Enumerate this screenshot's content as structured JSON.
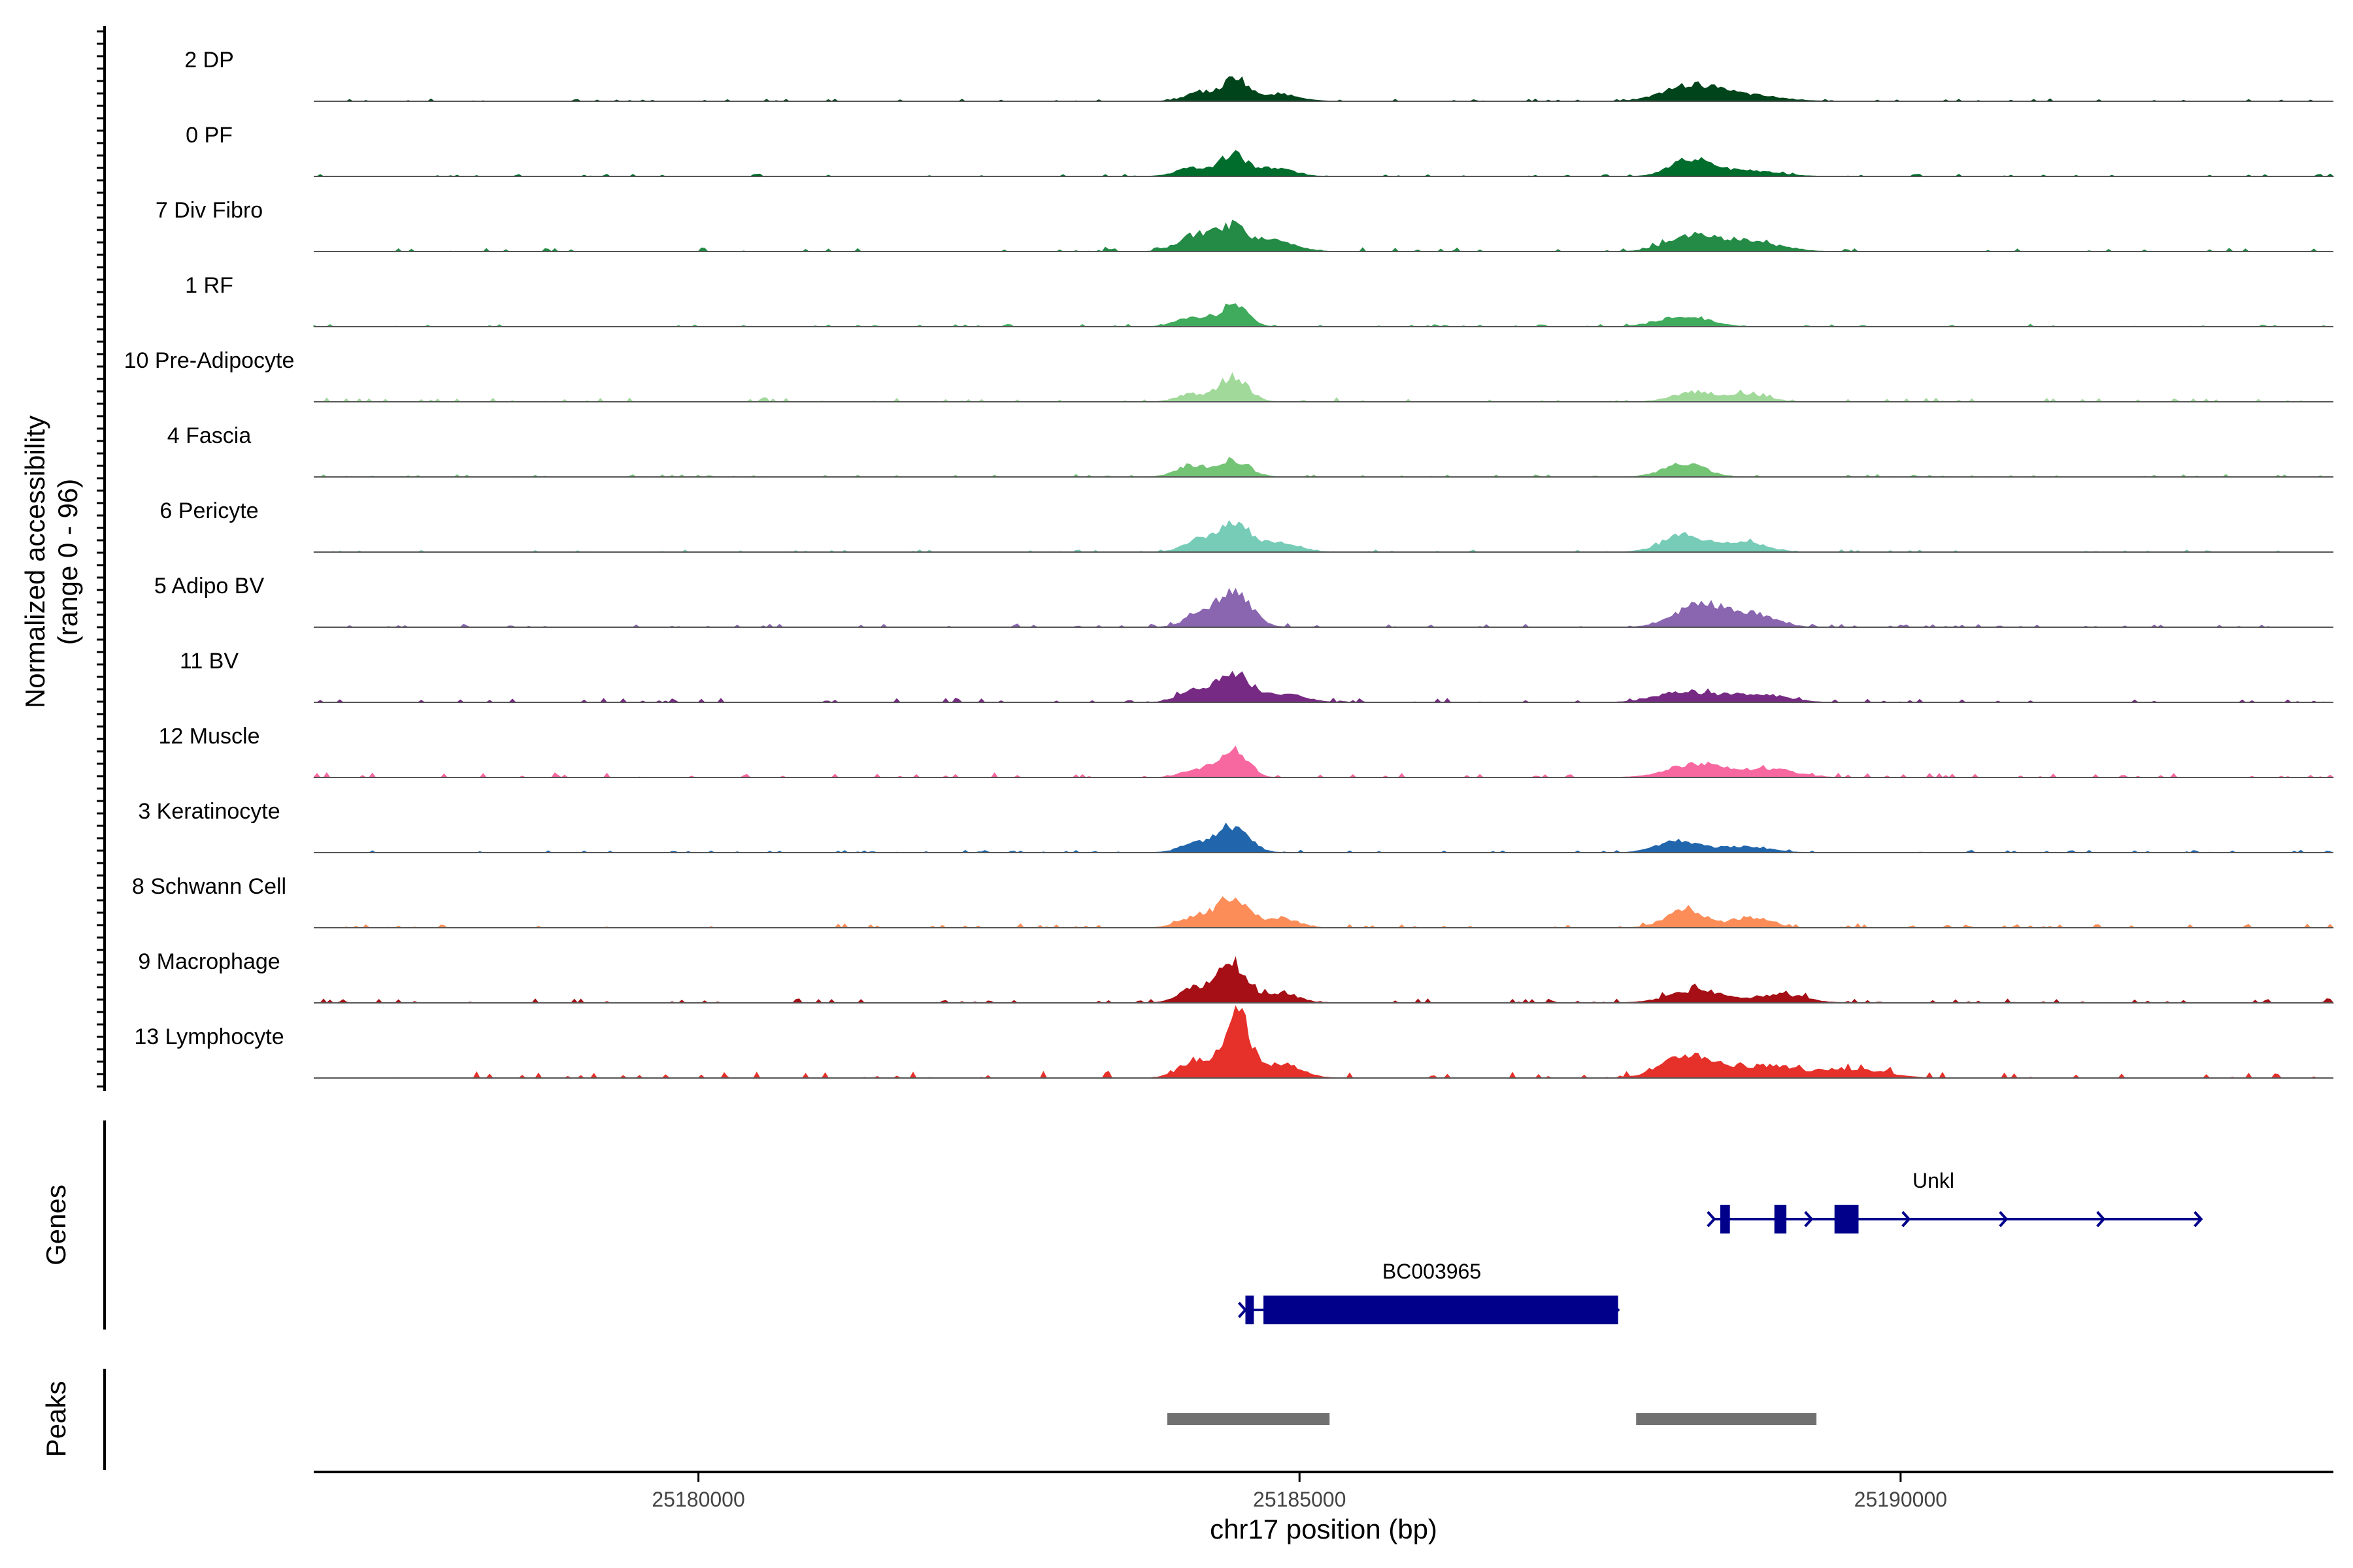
{
  "chart_data": {
    "type": "area",
    "title": "",
    "ylabel_line1": "Normalized accessibility",
    "ylabel_line2": "(range 0 - 96)",
    "ylim": [
      0,
      96
    ],
    "xlabel": "chr17 position (bp)",
    "xlim": [
      25176800,
      25193600
    ],
    "xticks": [
      25180000,
      25185000,
      25190000
    ],
    "xtick_labels": [
      "25180000",
      "25185000",
      "25190000"
    ],
    "series": [
      {
        "name": "2 DP",
        "color": "#00441B",
        "peaks": [
          [
            25184470,
            30,
            90
          ],
          [
            25184200,
            12,
            140
          ],
          [
            25184800,
            10,
            170
          ],
          [
            25188250,
            20,
            220
          ],
          [
            25188700,
            8,
            280
          ]
        ],
        "noise": 3
      },
      {
        "name": "0 PF",
        "color": "#006D2C",
        "peaks": [
          [
            25184450,
            28,
            110
          ],
          [
            25184120,
            11,
            140
          ],
          [
            25184800,
            11,
            150
          ],
          [
            25188250,
            22,
            160
          ],
          [
            25188700,
            8,
            250
          ]
        ],
        "noise": 3
      },
      {
        "name": "7 Div Fibro",
        "color": "#238B45",
        "peaks": [
          [
            25184450,
            30,
            120
          ],
          [
            25184150,
            22,
            150
          ],
          [
            25184800,
            14,
            170
          ],
          [
            25188250,
            18,
            200
          ],
          [
            25188700,
            14,
            260
          ]
        ],
        "noise": 5
      },
      {
        "name": "1 RF",
        "color": "#41AB5D",
        "peaks": [
          [
            25184450,
            30,
            110
          ],
          [
            25184100,
            12,
            130
          ],
          [
            25188200,
            14,
            200
          ]
        ],
        "noise": 3
      },
      {
        "name": "10 Pre-Adipocyte",
        "color": "#A1D99B",
        "peaks": [
          [
            25184450,
            32,
            120
          ],
          [
            25184100,
            10,
            120
          ],
          [
            25188300,
            13,
            180
          ],
          [
            25188750,
            9,
            160
          ]
        ],
        "noise": 5
      },
      {
        "name": "4 Fascia",
        "color": "#74C476",
        "peaks": [
          [
            25184450,
            22,
            130
          ],
          [
            25184100,
            14,
            130
          ],
          [
            25188200,
            17,
            170
          ]
        ],
        "noise": 3
      },
      {
        "name": "6 Pericyte",
        "color": "#76CCB6",
        "peaks": [
          [
            25184450,
            36,
            140
          ],
          [
            25184150,
            14,
            120
          ],
          [
            25184850,
            13,
            150
          ],
          [
            25188200,
            22,
            180
          ],
          [
            25188700,
            13,
            180
          ]
        ],
        "noise": 3
      },
      {
        "name": "5 Adipo BV",
        "color": "#8A65B0",
        "peaks": [
          [
            25184450,
            48,
            140
          ],
          [
            25184150,
            14,
            120
          ],
          [
            25188350,
            30,
            210
          ],
          [
            25188800,
            16,
            170
          ]
        ],
        "noise": 4
      },
      {
        "name": "11 BV",
        "color": "#762A83",
        "peaks": [
          [
            25184450,
            38,
            150
          ],
          [
            25184100,
            13,
            120
          ],
          [
            25184900,
            11,
            150
          ],
          [
            25188200,
            14,
            220
          ],
          [
            25188800,
            11,
            230
          ]
        ],
        "noise": 5
      },
      {
        "name": "12 Muscle",
        "color": "#F768A1",
        "peaks": [
          [
            25184450,
            40,
            110
          ],
          [
            25184150,
            10,
            130
          ],
          [
            25188300,
            18,
            230
          ],
          [
            25188900,
            11,
            220
          ]
        ],
        "noise": 6
      },
      {
        "name": "3 Keratinocyte",
        "color": "#2166AC",
        "peaks": [
          [
            25184450,
            34,
            130
          ],
          [
            25184150,
            11,
            140
          ],
          [
            25188150,
            16,
            170
          ],
          [
            25188700,
            8,
            200
          ]
        ],
        "noise": 3
      },
      {
        "name": "8 Schwann Cell",
        "color": "#FC8D59",
        "peaks": [
          [
            25184450,
            38,
            130
          ],
          [
            25184150,
            14,
            140
          ],
          [
            25184850,
            12,
            140
          ],
          [
            25188200,
            22,
            160
          ],
          [
            25188750,
            14,
            160
          ]
        ],
        "noise": 5
      },
      {
        "name": "9 Macrophage",
        "color": "#A50F15",
        "peaks": [
          [
            25184450,
            50,
            120
          ],
          [
            25184150,
            20,
            140
          ],
          [
            25184850,
            12,
            140
          ],
          [
            25188300,
            16,
            220
          ],
          [
            25189000,
            11,
            200
          ]
        ],
        "noise": 6
      },
      {
        "name": "13 Lymphocyte",
        "color": "#E6302A",
        "peaks": [
          [
            25184480,
            85,
            100
          ],
          [
            25184150,
            24,
            140
          ],
          [
            25184850,
            18,
            160
          ],
          [
            25188250,
            30,
            220
          ],
          [
            25188900,
            16,
            250
          ],
          [
            25189600,
            12,
            250
          ]
        ],
        "noise": 8
      }
    ],
    "genes_label": "Genes",
    "genes": [
      {
        "name": "Unkl",
        "color": "#00008B",
        "start": 25188450,
        "end": 25192500,
        "strand": "+",
        "row": 0,
        "exons": [
          [
            25188500,
            25188580
          ],
          [
            25188950,
            25189050
          ],
          [
            25189450,
            25189650
          ]
        ]
      },
      {
        "name": "BC003965",
        "color": "#00008B",
        "start": 25184550,
        "end": 25187650,
        "strand": "+",
        "row": 1,
        "exons": [
          [
            25184550,
            25184620
          ],
          [
            25184700,
            25187650
          ]
        ]
      }
    ],
    "peaks_label": "Peaks",
    "peak_color": "#707070",
    "peaks": [
      [
        25183900,
        25185250
      ],
      [
        25187800,
        25189300
      ]
    ]
  }
}
